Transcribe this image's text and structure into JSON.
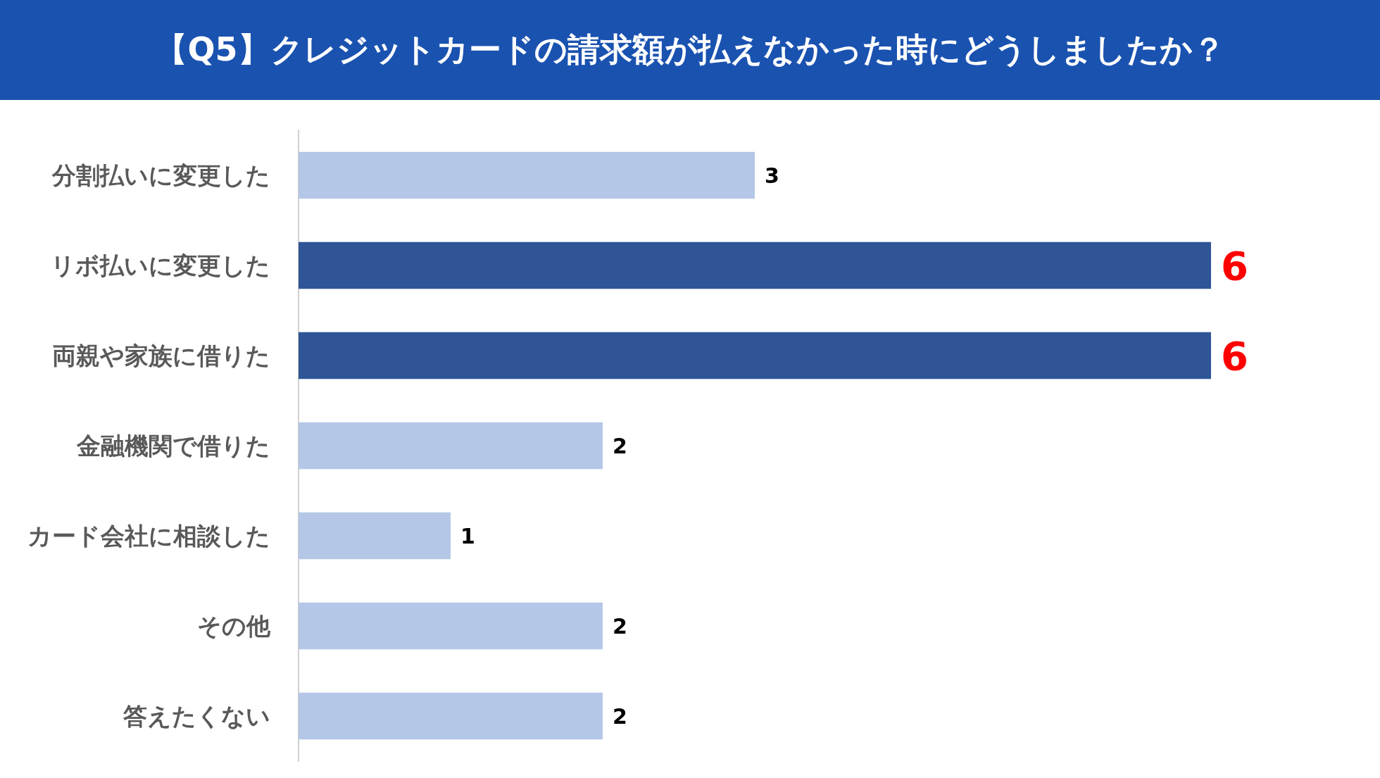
{
  "chart_data": {
    "type": "bar",
    "orientation": "horizontal",
    "title": "【Q5】クレジットカードの請求額が払えなかった時にどうしましたか？",
    "categories": [
      "分割払いに変更した",
      "リボ払いに変更した",
      "両親や家族に借りた",
      "金融機関で借りた",
      "カード会社に相談した",
      "その他",
      "答えたくない"
    ],
    "values": [
      3,
      6,
      6,
      2,
      1,
      2,
      2
    ],
    "colors": [
      "#b4c7e7",
      "#2f5597",
      "#2f5597",
      "#b4c7e7",
      "#b4c7e7",
      "#b4c7e7",
      "#b4c7e7"
    ],
    "data_labels": true
  }
}
